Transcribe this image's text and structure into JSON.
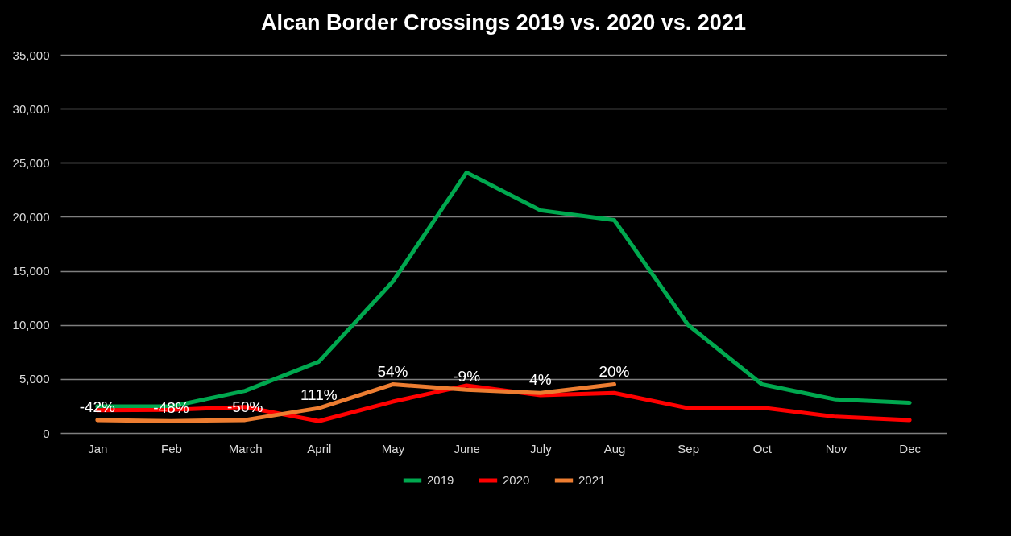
{
  "chart_data": {
    "type": "line",
    "title": "Alcan Border Crossings 2019 vs. 2020 vs. 2021",
    "categories": [
      "Jan",
      "Feb",
      "March",
      "April",
      "May",
      "June",
      "July",
      "Aug",
      "Sep",
      "Oct",
      "Nov",
      "Dec"
    ],
    "series": [
      {
        "name": "2019",
        "color": "#00a84f",
        "values": [
          2450,
          2450,
          3900,
          6600,
          14000,
          24100,
          20600,
          19700,
          10000,
          4500,
          3100,
          2800
        ]
      },
      {
        "name": "2020",
        "color": "#ff0000",
        "values": [
          2100,
          2150,
          2400,
          1100,
          2900,
          4400,
          3500,
          3700,
          2300,
          2350,
          1500,
          1200
        ]
      },
      {
        "name": "2021",
        "color": "#ed7d31",
        "values": [
          1200,
          1100,
          1200,
          2300,
          4500,
          4000,
          3700,
          4500,
          null,
          null,
          null,
          null
        ]
      }
    ],
    "annotations": [
      {
        "text": "-42%",
        "x": "Jan",
        "y": 1200
      },
      {
        "text": "-48%",
        "x": "Feb",
        "y": 1100
      },
      {
        "text": "-50%",
        "x": "March",
        "y": 1200
      },
      {
        "text": "111%",
        "x": "April",
        "y": 2300
      },
      {
        "text": "54%",
        "x": "May",
        "y": 4500
      },
      {
        "text": "-9%",
        "x": "June",
        "y": 4000
      },
      {
        "text": "4%",
        "x": "July",
        "y": 3700
      },
      {
        "text": "20%",
        "x": "Aug",
        "y": 4500
      }
    ],
    "ylim": [
      0,
      35000
    ],
    "yticks": [
      0,
      {
        "value": 5000,
        "label": "5,000"
      },
      {
        "value": 10000,
        "label": "10,000"
      },
      {
        "value": 15000,
        "label": "15,000"
      },
      {
        "value": 20000,
        "label": "20,000"
      },
      {
        "value": 25000,
        "label": "25,000"
      },
      {
        "value": 30000,
        "label": "30,000"
      },
      {
        "value": 35000,
        "label": "35,000"
      }
    ],
    "grid": "y",
    "legend": "bottom",
    "marker": "none",
    "line_style": "solid"
  }
}
